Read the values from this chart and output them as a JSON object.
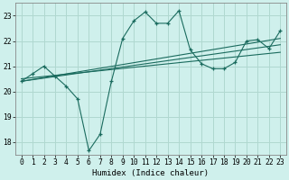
{
  "xlabel": "Humidex (Indice chaleur)",
  "xlim": [
    -0.5,
    23.5
  ],
  "ylim": [
    17.5,
    23.5
  ],
  "xticks": [
    0,
    1,
    2,
    3,
    4,
    5,
    6,
    7,
    8,
    9,
    10,
    11,
    12,
    13,
    14,
    15,
    16,
    17,
    18,
    19,
    20,
    21,
    22,
    23
  ],
  "yticks": [
    18,
    19,
    20,
    21,
    22,
    23
  ],
  "bg_color": "#cff0ec",
  "grid_color": "#b0d8d0",
  "line_color": "#1a6b5e",
  "main_x": [
    0,
    1,
    2,
    3,
    4,
    5,
    6,
    7,
    8,
    9,
    10,
    11,
    12,
    13,
    14,
    15,
    16,
    17,
    18,
    19,
    20,
    21,
    22,
    23
  ],
  "main_y": [
    20.4,
    20.7,
    21.0,
    20.6,
    20.2,
    19.7,
    17.65,
    18.3,
    20.4,
    22.1,
    22.8,
    23.15,
    22.7,
    22.7,
    23.2,
    21.65,
    21.1,
    20.9,
    20.9,
    21.15,
    22.0,
    22.05,
    21.7,
    22.4
  ],
  "trend1_x": [
    0,
    23
  ],
  "trend1_y": [
    20.4,
    22.1
  ],
  "trend2_x": [
    0,
    23
  ],
  "trend2_y": [
    20.5,
    21.55
  ],
  "trend3_x": [
    0,
    23
  ],
  "trend3_y": [
    20.4,
    21.85
  ]
}
